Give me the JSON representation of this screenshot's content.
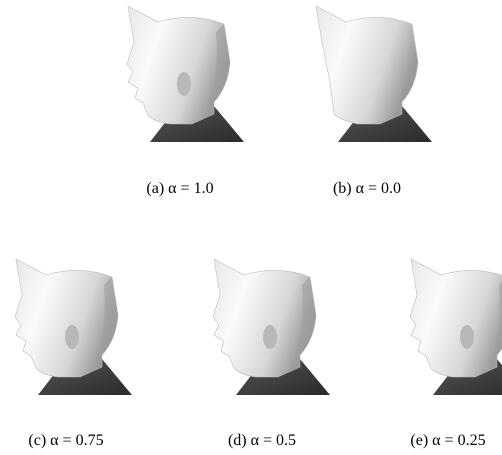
{
  "figure": {
    "panels": [
      {
        "caption": "(a) α = 1.0"
      },
      {
        "caption": "(b) α = 0.0"
      },
      {
        "caption": "(c) α = 0.75"
      },
      {
        "caption": "(d) α = 0.5"
      },
      {
        "caption": "(e) α = 0.25"
      }
    ]
  }
}
